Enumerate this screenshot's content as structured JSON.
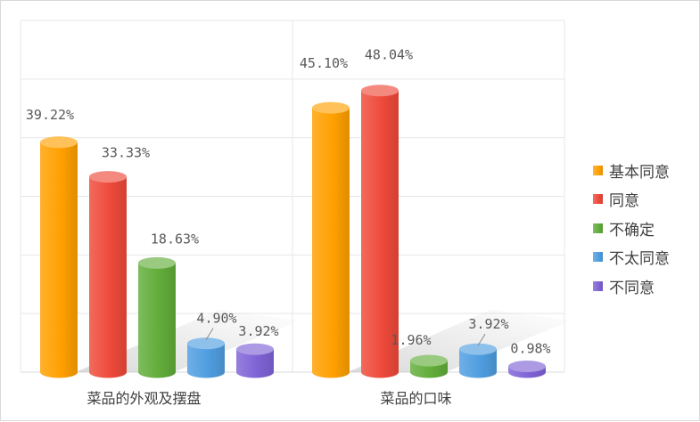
{
  "chart_data": {
    "type": "bar",
    "style": "3d-cylinder",
    "categories": [
      "菜品的外观及摆盘",
      "菜品的口味"
    ],
    "series": [
      {
        "name": "基本同意",
        "color": "#ffa000",
        "values": [
          39.22,
          45.1
        ],
        "labels": [
          "39.22%",
          "45.10%"
        ]
      },
      {
        "name": "同意",
        "color": "#ee4a3a",
        "values": [
          33.33,
          48.04
        ],
        "labels": [
          "33.33%",
          "48.04%"
        ]
      },
      {
        "name": "不确定",
        "color": "#62ad3a",
        "values": [
          18.63,
          1.96
        ],
        "labels": [
          "18.63%",
          "1.96%"
        ]
      },
      {
        "name": "不太同意",
        "color": "#4f9ee0",
        "values": [
          4.9,
          3.92
        ],
        "labels": [
          "4.90%",
          "3.92%"
        ]
      },
      {
        "name": "不同意",
        "color": "#7f63d6",
        "values": [
          3.92,
          0.98
        ],
        "labels": [
          "3.92%",
          "0.98%"
        ]
      }
    ],
    "ylim": [
      0,
      60
    ],
    "grid": true,
    "legend": "right"
  }
}
